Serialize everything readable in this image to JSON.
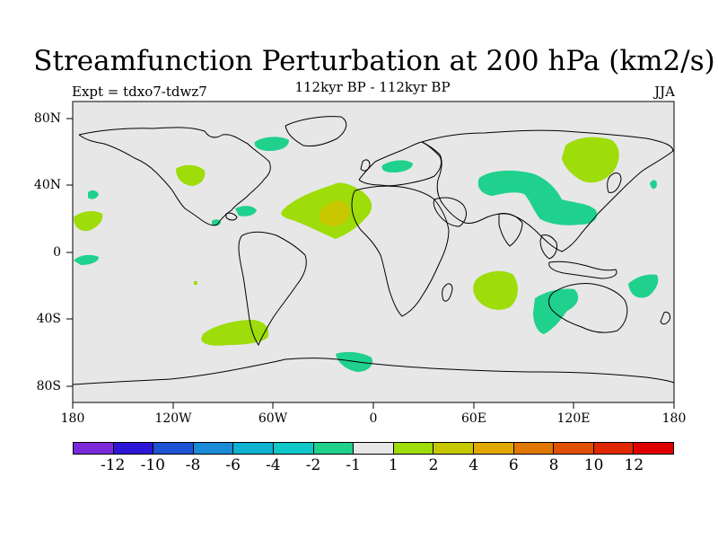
{
  "title": "Streamfunction Perturbation at 200 hPa (km2/s)",
  "subtitle": "112kyr BP - 112kyr BP",
  "experiment": "Expt = tdxo7-tdwz7",
  "season": "JJA",
  "lat_labels": [
    "80N",
    "40N",
    "0",
    "40S",
    "80S"
  ],
  "lon_labels": [
    "180",
    "120W",
    "60W",
    "0",
    "60E",
    "120E",
    "180"
  ],
  "colors": {
    "background": "#e7e7e7",
    "neg_1": "#1fd18c",
    "pos_1": "#9edc0a",
    "pos_2": "#c8c800",
    "coast": "#000000"
  },
  "legend": {
    "colors": [
      "#7a2ad9",
      "#2d16d6",
      "#1d53d2",
      "#1a8bd6",
      "#0cb2d0",
      "#0ec8c8",
      "#1fd18c",
      "#e7e7e7",
      "#9edc0a",
      "#c8c800",
      "#e0a800",
      "#e07800",
      "#e05000",
      "#e02800",
      "#e00000"
    ],
    "labels": [
      "-12",
      "-10",
      "-8",
      "-6",
      "-4",
      "-2",
      "-1",
      "1",
      "2",
      "4",
      "6",
      "8",
      "10",
      "12"
    ]
  }
}
